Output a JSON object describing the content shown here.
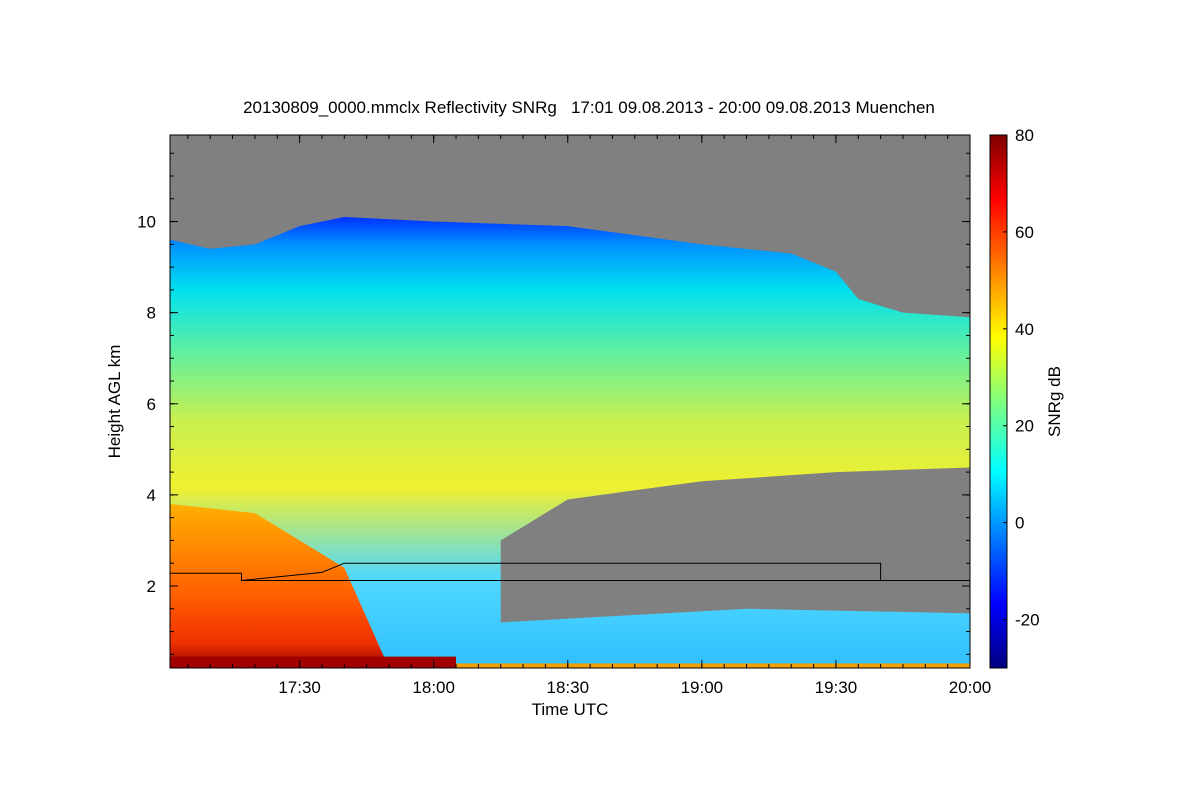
{
  "title": "20130809_0000.mmclx Reflectivity SNRg   17:01 09.08.2013 - 20:00 09.08.2013 Muenchen",
  "chart_data": {
    "type": "heatmap",
    "variable": "Reflectivity SNRg",
    "xlabel": "Time UTC",
    "ylabel": "Height AGL km",
    "colorbar_label": "SNRg dB",
    "xlim": [
      "17:01",
      "20:00"
    ],
    "ylim": [
      0.2,
      11.9
    ],
    "x_ticks": [
      "17:30",
      "18:00",
      "18:30",
      "19:00",
      "19:30",
      "20:00"
    ],
    "y_ticks": [
      2,
      4,
      6,
      8,
      10
    ],
    "colorbar_range": [
      -30,
      80
    ],
    "colorbar_ticks": [
      -20,
      0,
      20,
      40,
      60,
      80
    ],
    "colormap": [
      "#00007f",
      "#0000ff",
      "#007fff",
      "#00ffff",
      "#7fff7f",
      "#ffff00",
      "#ff7f00",
      "#ff0000",
      "#7f0000"
    ],
    "no_signal_color": "#808080",
    "cloud_top_km": [
      {
        "time": "17:01",
        "height": 9.6
      },
      {
        "time": "17:10",
        "height": 9.4
      },
      {
        "time": "17:20",
        "height": 9.5
      },
      {
        "time": "17:30",
        "height": 9.9
      },
      {
        "time": "17:40",
        "height": 10.1
      },
      {
        "time": "18:00",
        "height": 10.0
      },
      {
        "time": "18:30",
        "height": 9.9
      },
      {
        "time": "19:00",
        "height": 9.5
      },
      {
        "time": "19:20",
        "height": 9.3
      },
      {
        "time": "19:30",
        "height": 8.9
      },
      {
        "time": "19:35",
        "height": 8.3
      },
      {
        "time": "19:45",
        "height": 8.0
      },
      {
        "time": "20:00",
        "height": 7.9
      }
    ],
    "cloud_base_km": [
      {
        "time": "18:15",
        "height": 3.0
      },
      {
        "time": "18:30",
        "height": 3.9
      },
      {
        "time": "19:00",
        "height": 4.3
      },
      {
        "time": "19:30",
        "height": 4.5
      },
      {
        "time": "20:00",
        "height": 4.6
      }
    ],
    "boundary_layer_km": [
      {
        "time": "17:01",
        "height": 2.28
      },
      {
        "time": "17:17",
        "height": 2.28
      },
      {
        "time": "17:17",
        "height": 2.12
      },
      {
        "time": "17:35",
        "height": 2.3
      },
      {
        "time": "17:40",
        "height": 2.5
      },
      {
        "time": "19:40",
        "height": 2.5
      },
      {
        "time": "19:40",
        "height": 2.12
      },
      {
        "time": "20:00",
        "height": 2.12
      }
    ],
    "reference_level_km": 2.12
  }
}
